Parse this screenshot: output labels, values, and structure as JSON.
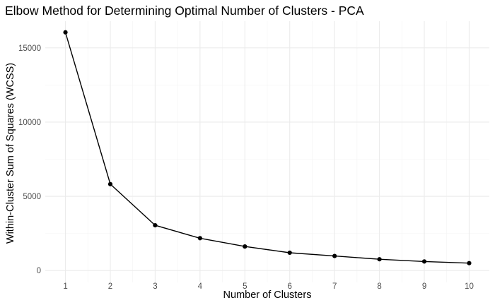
{
  "chart_data": {
    "type": "line",
    "title": "Elbow Method for Determining Optimal Number of Clusters - PCA",
    "xlabel": "Number of Clusters",
    "ylabel": "Within-Cluster Sum of Squares (WCSS)",
    "x": [
      1,
      2,
      3,
      4,
      5,
      6,
      7,
      8,
      9,
      10
    ],
    "y": [
      16050,
      5820,
      3050,
      2180,
      1620,
      1200,
      980,
      760,
      610,
      500
    ],
    "xlim": [
      0.55,
      10.45
    ],
    "ylim": [
      -800,
      16800
    ],
    "x_ticks": [
      "1",
      "2",
      "3",
      "4",
      "5",
      "6",
      "7",
      "8",
      "9",
      "10"
    ],
    "y_ticks": [
      "0",
      "5000",
      "10000",
      "15000"
    ],
    "y_tick_values": [
      0,
      5000,
      10000,
      15000
    ],
    "grid": true,
    "colors": {
      "line": "#000000",
      "point": "#000000",
      "grid": "#ebebeb",
      "background": "#ffffff"
    }
  }
}
